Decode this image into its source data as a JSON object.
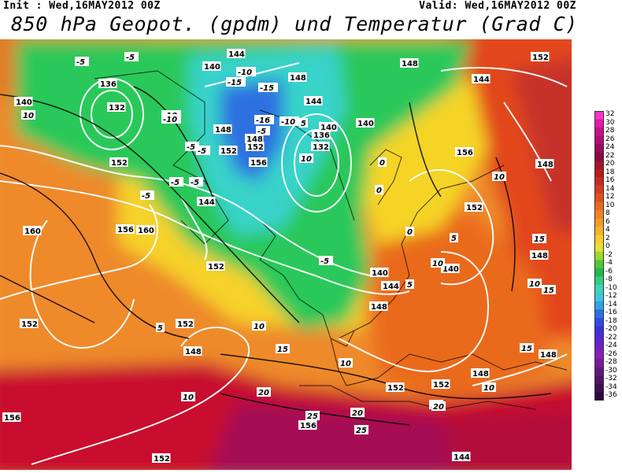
{
  "header": {
    "init_text": "Init : Wed,16MAY2012 00Z",
    "valid_text": "Valid: Wed,16MAY2012 00Z",
    "title": "850 hPa Geopot. (gpdm) und Temperatur (Grad C)"
  },
  "colors": {
    "warm_dark": "#b2182b",
    "warm": "#e34a33",
    "orange": "#f08c2a",
    "yellow": "#f5d426",
    "green": "#27c45a",
    "cyan": "#3fd3d6",
    "blue": "#2d6fe0",
    "magenta": "#c1127b",
    "isohypse": "#ffffff",
    "isotherm": "#000000"
  },
  "color_scale": {
    "unit": "Grad C",
    "values": [
      "32",
      "30",
      "28",
      "26",
      "24",
      "22",
      "20",
      "18",
      "16",
      "14",
      "12",
      "10",
      "8",
      "6",
      "4",
      "2",
      "0",
      "-2",
      "-4",
      "-6",
      "-8",
      "-10",
      "-12",
      "-14",
      "-16",
      "-18",
      "-20",
      "-22",
      "-24",
      "-26",
      "-28",
      "-30",
      "-32",
      "-34",
      "-36"
    ],
    "colors": [
      "#ff33cc",
      "#e01aa8",
      "#c8108a",
      "#b00d72",
      "#990b5e",
      "#8a0a3e",
      "#a01530",
      "#b71c1c",
      "#c62828",
      "#d63a1d",
      "#e0501c",
      "#ea6a1c",
      "#f08420",
      "#f59a24",
      "#f8b428",
      "#f9cc2a",
      "#e7e02c",
      "#9ed82e",
      "#4ccb36",
      "#22b84a",
      "#2fd07f",
      "#3ad6b6",
      "#3cc8e0",
      "#2fa2e6",
      "#2d6fe0",
      "#2e4de0",
      "#3b2fd9",
      "#5527cf",
      "#6e22c3",
      "#8a1eb6",
      "#7a1a9e",
      "#641782",
      "#531268",
      "#3f0e52",
      "#2a0a3a"
    ]
  },
  "map": {
    "geopotential_labels": [
      {
        "text": "144",
        "id": "g1"
      },
      {
        "text": "140",
        "id": "g2"
      },
      {
        "text": "136",
        "id": "g3"
      },
      {
        "text": "132",
        "id": "g4"
      },
      {
        "text": "140",
        "id": "g5"
      },
      {
        "text": "148",
        "id": "g6"
      },
      {
        "text": "148",
        "id": "g7"
      },
      {
        "text": "152",
        "id": "g8"
      },
      {
        "text": "148",
        "id": "g9"
      },
      {
        "text": "152",
        "id": "g10"
      },
      {
        "text": "156",
        "id": "g11"
      },
      {
        "text": "160",
        "id": "g12"
      },
      {
        "text": "160",
        "id": "g13"
      },
      {
        "text": "152",
        "id": "g14"
      },
      {
        "text": "148",
        "id": "g15"
      },
      {
        "text": "152",
        "id": "g16"
      },
      {
        "text": "156",
        "id": "g17"
      },
      {
        "text": "152",
        "id": "g18"
      },
      {
        "text": "156",
        "id": "g19"
      },
      {
        "text": "152",
        "id": "g20"
      },
      {
        "text": "140",
        "id": "g21"
      },
      {
        "text": "144",
        "id": "g22"
      },
      {
        "text": "148",
        "id": "g23"
      },
      {
        "text": "144",
        "id": "g24"
      },
      {
        "text": "148",
        "id": "g25"
      },
      {
        "text": "156",
        "id": "g26"
      },
      {
        "text": "152",
        "id": "g27"
      },
      {
        "text": "148",
        "id": "g28"
      },
      {
        "text": "136",
        "id": "g29"
      },
      {
        "text": "132",
        "id": "g30"
      },
      {
        "text": "140",
        "id": "g31"
      },
      {
        "text": "144",
        "id": "g32"
      },
      {
        "text": "152",
        "id": "g33"
      },
      {
        "text": "140",
        "id": "g34"
      },
      {
        "text": "148",
        "id": "g35"
      },
      {
        "text": "148",
        "id": "g36"
      },
      {
        "text": "152",
        "id": "g37"
      },
      {
        "text": "148",
        "id": "g38"
      },
      {
        "text": "152",
        "id": "g39"
      },
      {
        "text": "156",
        "id": "g40"
      },
      {
        "text": "144",
        "id": "g41"
      },
      {
        "text": "140",
        "id": "g42"
      },
      {
        "text": "152",
        "id": "g43"
      },
      {
        "text": "144",
        "id": "g44"
      }
    ],
    "temperature_labels": [
      {
        "text": "-5"
      },
      {
        "text": "-5"
      },
      {
        "text": "10"
      },
      {
        "text": "-10"
      },
      {
        "text": "-15"
      },
      {
        "text": "-15"
      },
      {
        "text": "-10"
      },
      {
        "text": "-5"
      },
      {
        "text": "-5"
      },
      {
        "text": "-10"
      },
      {
        "text": "-5"
      },
      {
        "text": "-5"
      },
      {
        "text": "-5"
      },
      {
        "text": "0"
      },
      {
        "text": "0"
      },
      {
        "text": "5"
      },
      {
        "text": "10"
      },
      {
        "text": "-5"
      },
      {
        "text": "5"
      },
      {
        "text": "10"
      },
      {
        "text": "10"
      },
      {
        "text": "15"
      },
      {
        "text": "15"
      },
      {
        "text": "20"
      },
      {
        "text": "20"
      },
      {
        "text": "25"
      },
      {
        "text": "25"
      },
      {
        "text": "15"
      },
      {
        "text": "10"
      },
      {
        "text": "10"
      },
      {
        "text": "5"
      },
      {
        "text": "10"
      },
      {
        "text": "15"
      },
      {
        "text": "10"
      },
      {
        "text": "-5"
      },
      {
        "text": "-10"
      },
      {
        "text": "-16"
      },
      {
        "text": "0"
      },
      {
        "text": "5"
      },
      {
        "text": "10"
      },
      {
        "text": "15"
      },
      {
        "text": "20"
      }
    ]
  }
}
